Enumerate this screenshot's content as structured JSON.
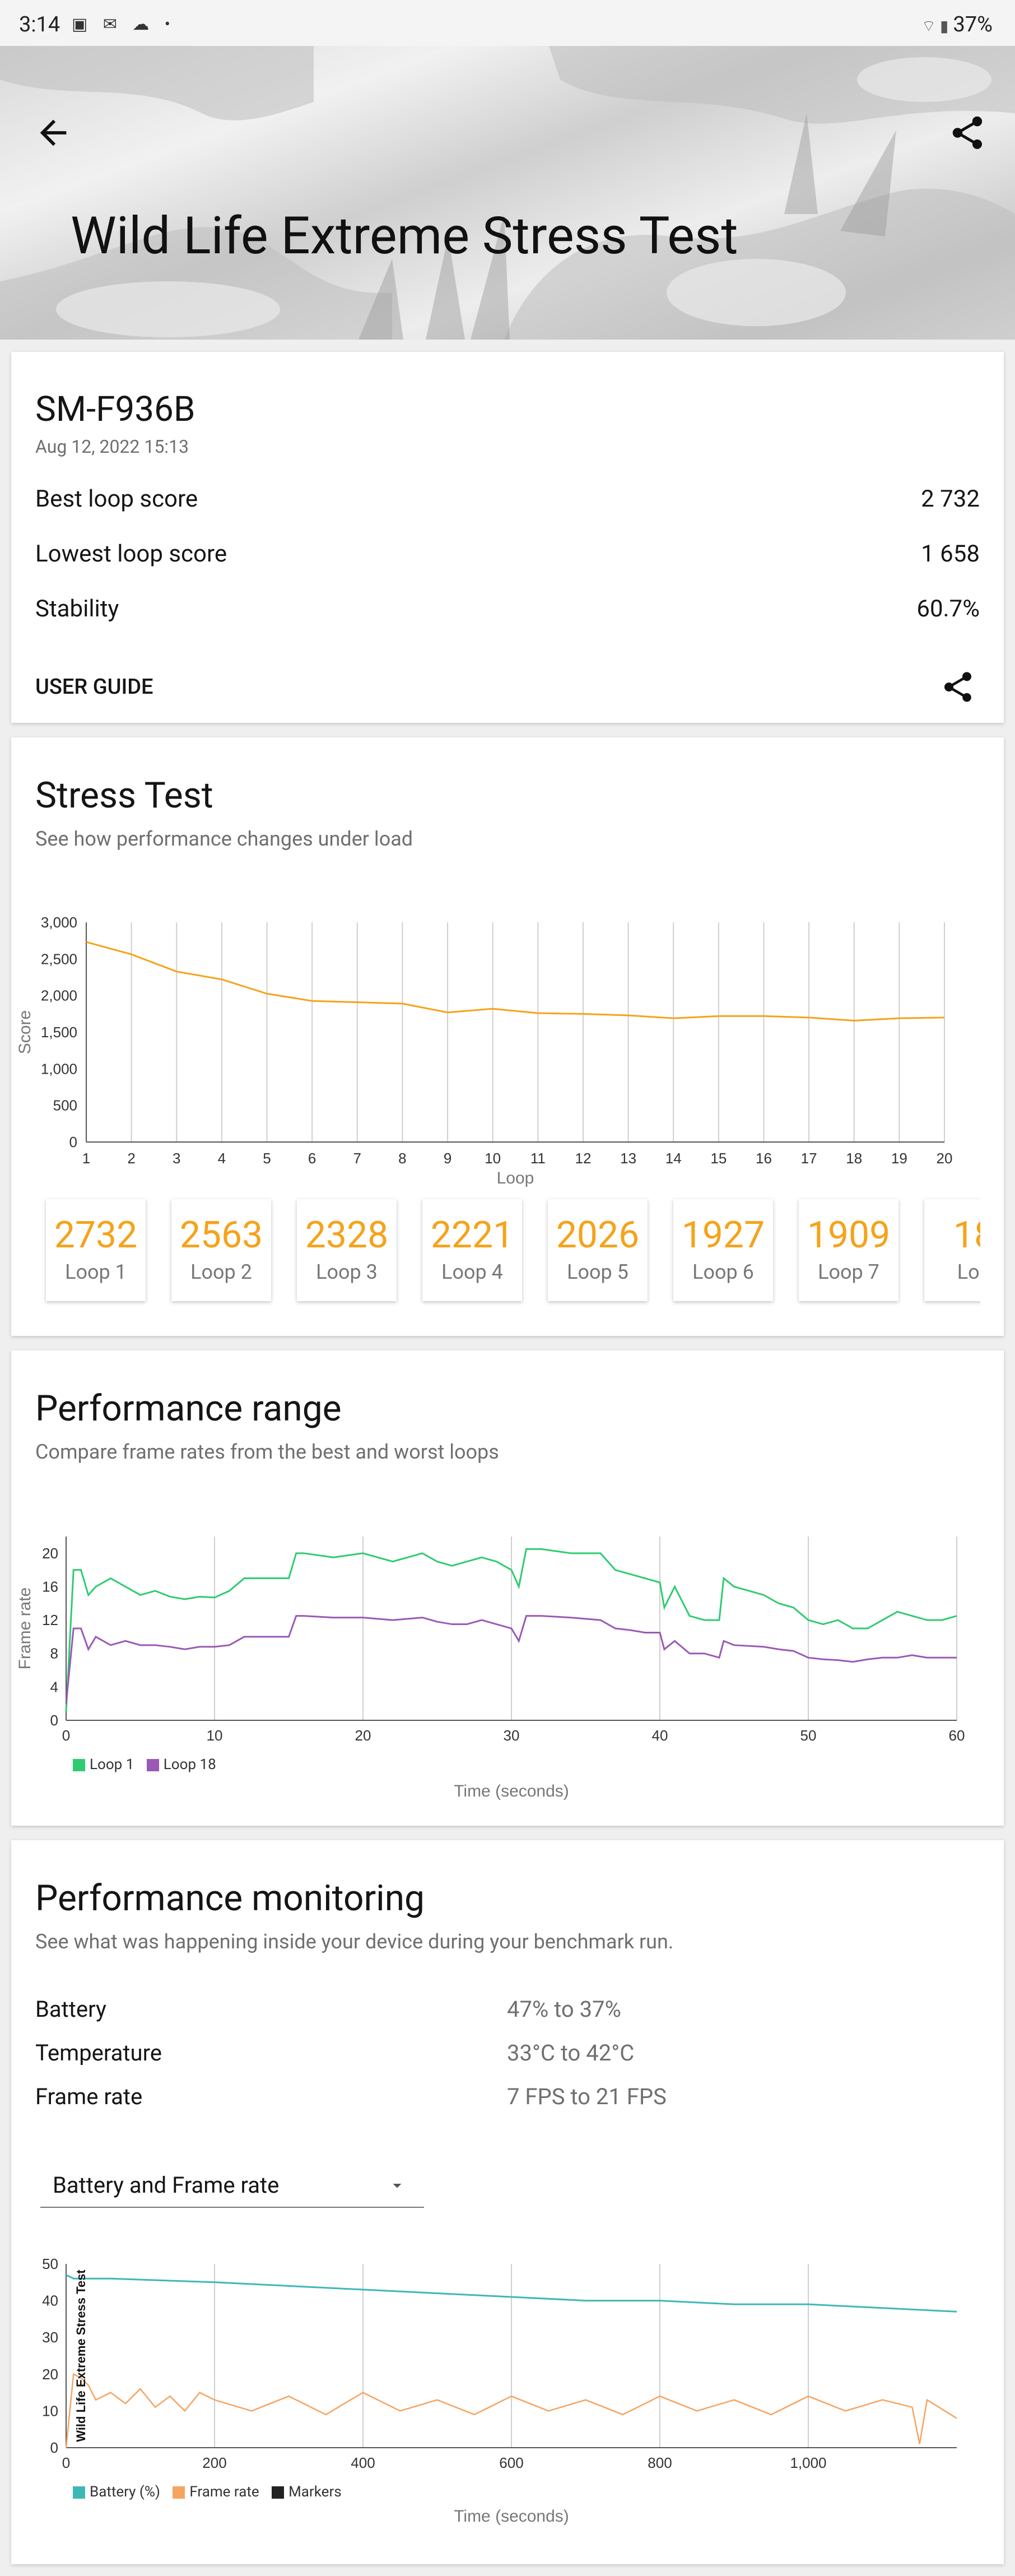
{
  "status_bar": {
    "time": "3:14",
    "battery": "37%",
    "left_icons": "▣ ✉ ☁ •",
    "right_icons": "⌔ ▮"
  },
  "header": {
    "title": "Wild Life Extreme Stress Test"
  },
  "summary": {
    "device": "SM-F936B",
    "date": "Aug 12, 2022 15:13",
    "rows": [
      {
        "label": "Best loop score",
        "value": "2 732"
      },
      {
        "label": "Lowest loop score",
        "value": "1 658"
      },
      {
        "label": "Stability",
        "value": "60.7%"
      }
    ],
    "user_guide_label": "USER GUIDE"
  },
  "stress_test": {
    "title": "Stress Test",
    "subtitle": "See how performance changes under load",
    "loops": [
      {
        "score": "2732",
        "label": "Loop 1"
      },
      {
        "score": "2563",
        "label": "Loop 2"
      },
      {
        "score": "2328",
        "label": "Loop 3"
      },
      {
        "score": "2221",
        "label": "Loop 4"
      },
      {
        "score": "2026",
        "label": "Loop 5"
      },
      {
        "score": "1927",
        "label": "Loop 6"
      },
      {
        "score": "1909",
        "label": "Loop 7"
      },
      {
        "score": "18",
        "label": "Loo"
      }
    ]
  },
  "performance_range": {
    "title": "Performance range",
    "subtitle": "Compare frame rates from the best and worst loops"
  },
  "performance_monitoring": {
    "title": "Performance monitoring",
    "subtitle": "See what was happening inside your device during your benchmark run.",
    "rows": [
      {
        "label": "Battery",
        "value": "47% to 37%"
      },
      {
        "label": "Temperature",
        "value": "33°C to 42°C"
      },
      {
        "label": "Frame rate",
        "value": "7 FPS to 21 FPS"
      }
    ],
    "dropdown_value": "Battery and Frame rate"
  },
  "colors": {
    "orange": "#f5a31a",
    "green": "#2ecc71",
    "purple": "#9b59b6",
    "teal": "#3fb8b5",
    "frame_orange": "#f6a461"
  },
  "chart_data": [
    {
      "type": "line",
      "title": "Stress Test",
      "xlabel": "Loop",
      "ylabel": "Score",
      "x": [
        1,
        2,
        3,
        4,
        5,
        6,
        7,
        8,
        9,
        10,
        11,
        12,
        13,
        14,
        15,
        16,
        17,
        18,
        19,
        20
      ],
      "series": [
        {
          "name": "Score",
          "values": [
            2732,
            2563,
            2328,
            2221,
            2026,
            1927,
            1909,
            1890,
            1770,
            1820,
            1760,
            1750,
            1730,
            1690,
            1720,
            1720,
            1700,
            1658,
            1690,
            1700
          ]
        }
      ],
      "xticks": [
        "1",
        "2",
        "3",
        "4",
        "5",
        "6",
        "7",
        "8",
        "9",
        "10",
        "11",
        "12",
        "13",
        "14",
        "15",
        "16",
        "17",
        "18",
        "19",
        "20"
      ],
      "yticks": [
        "0",
        "500",
        "1,000",
        "1,500",
        "2,000",
        "2,500",
        "3,000"
      ],
      "ylim": [
        0,
        3000
      ]
    },
    {
      "type": "line",
      "title": "Performance range",
      "xlabel": "Time (seconds)",
      "ylabel": "Frame rate",
      "xlim": [
        0,
        60
      ],
      "ylim": [
        0,
        22
      ],
      "xticks": [
        "0",
        "10",
        "20",
        "30",
        "40",
        "50",
        "60"
      ],
      "yticks": [
        "0",
        "4",
        "8",
        "12",
        "16",
        "20"
      ],
      "series": [
        {
          "name": "Loop 1",
          "x": [
            0,
            0.5,
            1,
            1.5,
            2,
            3,
            4,
            5,
            6,
            7,
            8,
            9,
            10,
            11,
            12,
            13,
            14,
            15,
            15.5,
            16,
            18,
            20,
            22,
            24,
            25,
            26,
            27,
            28,
            29,
            30,
            30.5,
            31,
            32,
            34,
            36,
            37,
            38,
            39,
            40,
            40.3,
            41,
            42,
            43,
            44,
            44.3,
            45,
            47,
            48,
            49,
            50,
            51,
            52,
            53,
            54,
            55,
            56,
            57,
            58,
            59,
            60
          ],
          "values": [
            1,
            18,
            18,
            15,
            16,
            17,
            16,
            15,
            15.5,
            14.8,
            14.5,
            14.8,
            14.7,
            15.5,
            17,
            17,
            17,
            17,
            20,
            20,
            19.5,
            20,
            19,
            20,
            19,
            18.5,
            19,
            19.5,
            19,
            18,
            16,
            20.5,
            20.5,
            20,
            20,
            18,
            17.5,
            17,
            16.5,
            13.5,
            16,
            12.5,
            12,
            12,
            17,
            16,
            15,
            14,
            13.5,
            12,
            11.5,
            12,
            11,
            11,
            12,
            13,
            12.5,
            12,
            12,
            12.5
          ]
        },
        {
          "name": "Loop 18",
          "x": [
            0,
            0.5,
            1,
            1.5,
            2,
            3,
            4,
            5,
            6,
            7,
            8,
            9,
            10,
            11,
            12,
            13,
            14,
            15,
            15.5,
            16,
            18,
            20,
            22,
            24,
            25,
            26,
            27,
            28,
            29,
            30,
            30.5,
            31,
            32,
            34,
            36,
            37,
            38,
            39,
            40,
            40.3,
            41,
            42,
            43,
            44,
            44.3,
            45,
            47,
            48,
            49,
            50,
            51,
            52,
            53,
            54,
            55,
            56,
            57,
            58,
            59,
            60
          ],
          "values": [
            2,
            11,
            11,
            8.5,
            10,
            9,
            9.5,
            9,
            9,
            8.8,
            8.5,
            8.8,
            8.8,
            9,
            10,
            10,
            10,
            10,
            12.5,
            12.5,
            12.3,
            12.3,
            12,
            12.3,
            11.8,
            11.5,
            11.5,
            12,
            11.5,
            11,
            9.5,
            12.5,
            12.5,
            12.3,
            12,
            11,
            10.8,
            10.5,
            10.5,
            8.5,
            9.5,
            8,
            8,
            7.5,
            9.5,
            9,
            8.8,
            8.5,
            8.3,
            7.5,
            7.3,
            7.2,
            7,
            7.3,
            7.5,
            7.5,
            7.8,
            7.5,
            7.5,
            7.5
          ]
        }
      ],
      "legend": [
        "Loop 1",
        "Loop 18"
      ]
    },
    {
      "type": "line",
      "title": "Battery and Frame rate",
      "xlabel": "Time (seconds)",
      "ylabel": "Wild Life Extreme Stress Test",
      "xlim": [
        0,
        1200
      ],
      "ylim": [
        0,
        50
      ],
      "xticks": [
        "0",
        "200",
        "400",
        "600",
        "800",
        "1,000"
      ],
      "yticks": [
        "0",
        "10",
        "20",
        "30",
        "40",
        "50"
      ],
      "series": [
        {
          "name": "Battery (%)",
          "x": [
            0,
            10,
            60,
            200,
            300,
            400,
            500,
            600,
            700,
            800,
            900,
            1000,
            1100,
            1200
          ],
          "values": [
            47,
            46,
            46,
            45,
            44,
            43,
            42,
            41,
            40,
            40,
            39,
            39,
            38,
            37
          ]
        },
        {
          "name": "Frame rate",
          "x": [
            0,
            10,
            20,
            30,
            40,
            60,
            80,
            100,
            120,
            140,
            160,
            180,
            200,
            250,
            300,
            350,
            400,
            450,
            500,
            550,
            600,
            650,
            700,
            750,
            800,
            850,
            900,
            950,
            1000,
            1050,
            1100,
            1140,
            1150,
            1160,
            1200
          ],
          "values": [
            0,
            20,
            19,
            17,
            13,
            15,
            12,
            16,
            11,
            14,
            10,
            15,
            13,
            10,
            14,
            9,
            15,
            10,
            13,
            9,
            14,
            10,
            13,
            9,
            14,
            10,
            13,
            9,
            14,
            10,
            13,
            11,
            1,
            13,
            8
          ]
        }
      ],
      "legend": [
        "Battery (%)",
        "Frame rate",
        "Markers"
      ]
    }
  ]
}
